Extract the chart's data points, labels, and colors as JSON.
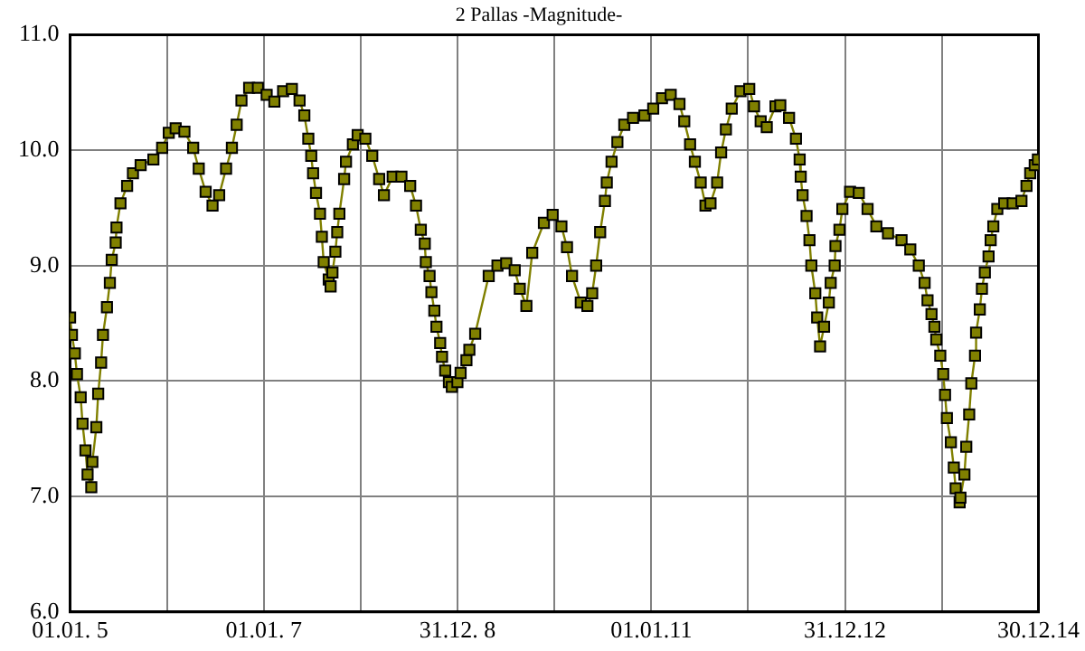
{
  "chart_data": {
    "type": "line",
    "title": "2 Pallas -Magnitude-",
    "x": [
      "2005-01-01",
      "2005-01-08",
      "2005-01-19",
      "2005-01-27",
      "2005-02-10",
      "2005-02-17",
      "2005-02-28",
      "2005-03-08",
      "2005-03-22",
      "2005-03-26",
      "2005-04-10",
      "2005-04-17",
      "2005-04-28",
      "2005-05-05",
      "2005-05-20",
      "2005-05-31",
      "2005-06-07",
      "2005-06-22",
      "2005-06-25",
      "2005-07-10",
      "2005-08-04",
      "2005-08-26",
      "2005-09-24",
      "2005-11-11",
      "2005-12-14",
      "2006-01-08",
      "2006-02-03",
      "2006-03-08",
      "2006-04-10",
      "2006-05-01",
      "2006-05-27",
      "2006-06-22",
      "2006-07-17",
      "2006-08-12",
      "2006-09-03",
      "2006-09-21",
      "2006-10-09",
      "2006-11-07",
      "2006-12-10",
      "2007-01-12",
      "2007-02-10",
      "2007-03-15",
      "2007-04-17",
      "2007-05-16",
      "2007-06-03",
      "2007-06-18",
      "2007-06-29",
      "2007-07-06",
      "2007-07-17",
      "2007-08-01",
      "2007-08-08",
      "2007-08-15",
      "2007-09-03",
      "2007-09-10",
      "2007-09-17",
      "2007-09-28",
      "2007-10-05",
      "2007-10-13",
      "2007-10-31",
      "2007-11-07",
      "2007-12-03",
      "2007-12-21",
      "2008-01-19",
      "2008-02-14",
      "2008-03-11",
      "2008-03-29",
      "2008-05-01",
      "2008-06-03",
      "2008-07-06",
      "2008-07-28",
      "2008-08-15",
      "2008-08-30",
      "2008-09-03",
      "2008-09-17",
      "2008-09-24",
      "2008-10-05",
      "2008-10-13",
      "2008-10-27",
      "2008-11-03",
      "2008-11-15",
      "2008-11-29",
      "2008-12-10",
      "2008-12-31",
      "2009-01-12",
      "2009-02-03",
      "2009-02-14",
      "2009-03-08",
      "2009-04-28",
      "2009-05-31",
      "2009-07-03",
      "2009-08-04",
      "2009-08-23",
      "2009-09-17",
      "2009-10-09",
      "2009-11-22",
      "2009-12-25",
      "2010-01-27",
      "2010-02-17",
      "2010-03-08",
      "2010-04-10",
      "2010-05-05",
      "2010-05-23",
      "2010-06-07",
      "2010-06-22",
      "2010-07-10",
      "2010-07-17",
      "2010-08-04",
      "2010-08-26",
      "2010-09-21",
      "2010-10-24",
      "2010-12-06",
      "2011-01-08",
      "2011-02-10",
      "2011-03-15",
      "2011-04-17",
      "2011-05-05",
      "2011-05-27",
      "2011-06-14",
      "2011-07-06",
      "2011-07-24",
      "2011-08-12",
      "2011-09-06",
      "2011-09-21",
      "2011-10-09",
      "2011-10-31",
      "2011-12-03",
      "2012-01-05",
      "2012-01-23",
      "2012-02-17",
      "2012-03-11",
      "2012-04-13",
      "2012-05-01",
      "2012-06-03",
      "2012-06-29",
      "2012-07-13",
      "2012-07-17",
      "2012-07-24",
      "2012-08-08",
      "2012-08-19",
      "2012-08-26",
      "2012-09-10",
      "2012-09-17",
      "2012-09-28",
      "2012-10-13",
      "2012-10-31",
      "2012-11-07",
      "2012-11-22",
      "2012-11-25",
      "2012-12-10",
      "2012-12-21",
      "2013-01-19",
      "2013-02-21",
      "2013-03-26",
      "2013-04-28",
      "2013-06-11",
      "2013-08-01",
      "2013-09-03",
      "2013-10-05",
      "2013-10-27",
      "2013-11-07",
      "2013-11-22",
      "2013-12-03",
      "2013-12-10",
      "2013-12-25",
      "2014-01-05",
      "2014-01-12",
      "2014-01-19",
      "2014-02-03",
      "2014-02-14",
      "2014-02-21",
      "2014-03-08",
      "2014-03-11",
      "2014-03-26",
      "2014-04-02",
      "2014-04-13",
      "2014-04-21",
      "2014-05-05",
      "2014-05-09",
      "2014-05-23",
      "2014-05-31",
      "2014-06-11",
      "2014-06-25",
      "2014-07-03",
      "2014-07-13",
      "2014-07-28",
      "2014-08-23",
      "2014-09-24",
      "2014-10-27",
      "2014-11-15",
      "2014-11-29",
      "2014-12-16",
      "2014-12-28"
    ],
    "series": [
      {
        "color": "#808000",
        "values": [
          8.55,
          8.4,
          8.24,
          8.06,
          7.86,
          7.63,
          7.4,
          7.19,
          7.08,
          7.3,
          7.6,
          7.89,
          8.16,
          8.4,
          8.64,
          8.85,
          9.05,
          9.2,
          9.33,
          9.54,
          9.69,
          9.8,
          9.87,
          9.92,
          10.02,
          10.15,
          10.19,
          10.16,
          10.02,
          9.84,
          9.64,
          9.52,
          9.61,
          9.84,
          10.02,
          10.22,
          10.43,
          10.54,
          10.54,
          10.48,
          10.42,
          10.51,
          10.53,
          10.43,
          10.3,
          10.1,
          9.95,
          9.8,
          9.63,
          9.45,
          9.25,
          9.03,
          8.88,
          8.82,
          8.94,
          9.12,
          9.29,
          9.45,
          9.75,
          9.9,
          10.05,
          10.13,
          10.1,
          9.95,
          9.75,
          9.61,
          9.77,
          9.77,
          9.69,
          9.52,
          9.31,
          9.19,
          9.03,
          8.91,
          8.77,
          8.61,
          8.47,
          8.33,
          8.21,
          8.09,
          7.99,
          7.95,
          7.99,
          8.07,
          8.18,
          8.27,
          8.41,
          8.91,
          9.0,
          9.02,
          8.96,
          8.8,
          8.65,
          9.11,
          9.37,
          9.44,
          9.34,
          9.16,
          8.91,
          8.68,
          8.65,
          8.76,
          9.0,
          9.29,
          9.56,
          9.72,
          9.9,
          10.07,
          10.22,
          10.28,
          10.3,
          10.36,
          10.45,
          10.48,
          10.4,
          10.25,
          10.05,
          9.9,
          9.72,
          9.52,
          9.54,
          9.72,
          9.98,
          10.18,
          10.36,
          10.51,
          10.53,
          10.38,
          10.25,
          10.2,
          10.38,
          10.39,
          10.28,
          10.1,
          9.92,
          9.77,
          9.61,
          9.43,
          9.22,
          9.0,
          8.76,
          8.55,
          8.3,
          8.47,
          8.68,
          8.85,
          9.0,
          9.17,
          9.31,
          9.49,
          9.64,
          9.63,
          9.49,
          9.34,
          9.28,
          9.22,
          9.14,
          9.0,
          8.85,
          8.7,
          8.58,
          8.47,
          8.36,
          8.22,
          8.06,
          7.88,
          7.68,
          7.47,
          7.25,
          7.07,
          6.95,
          6.99,
          7.19,
          7.43,
          7.71,
          7.98,
          8.22,
          8.42,
          8.62,
          8.8,
          8.94,
          9.08,
          9.22,
          9.34,
          9.49,
          9.54,
          9.54,
          9.56,
          9.69,
          9.8,
          9.87,
          9.92
        ]
      }
    ],
    "xlim": [
      "2005-01-01",
      "2014-12-30"
    ],
    "xticks": [
      {
        "value": "2005-01-01",
        "label": "01.01. 5"
      },
      {
        "value": "2006-01-01",
        "label": null
      },
      {
        "value": "2007-01-01",
        "label": "01.01. 7"
      },
      {
        "value": "2008-01-01",
        "label": null
      },
      {
        "value": "2008-12-31",
        "label": "31.12. 8"
      },
      {
        "value": "2009-12-31",
        "label": null
      },
      {
        "value": "2011-01-01",
        "label": "01.01.11"
      },
      {
        "value": "2011-12-31",
        "label": null
      },
      {
        "value": "2012-12-31",
        "label": "31.12.12"
      },
      {
        "value": "2013-12-31",
        "label": null
      },
      {
        "value": "2014-12-30",
        "label": "30.12.14"
      }
    ],
    "ylim": [
      6,
      11
    ],
    "yticks": [
      {
        "value": 6,
        "label": "6.0"
      },
      {
        "value": 7,
        "label": "7.0"
      },
      {
        "value": 8,
        "label": "8.0"
      },
      {
        "value": 9,
        "label": "9.0"
      },
      {
        "value": 10,
        "label": "10.0"
      },
      {
        "value": 11,
        "label": "11.0"
      }
    ],
    "grid": true,
    "marker": "square",
    "line_style": "solid",
    "legend": false
  }
}
